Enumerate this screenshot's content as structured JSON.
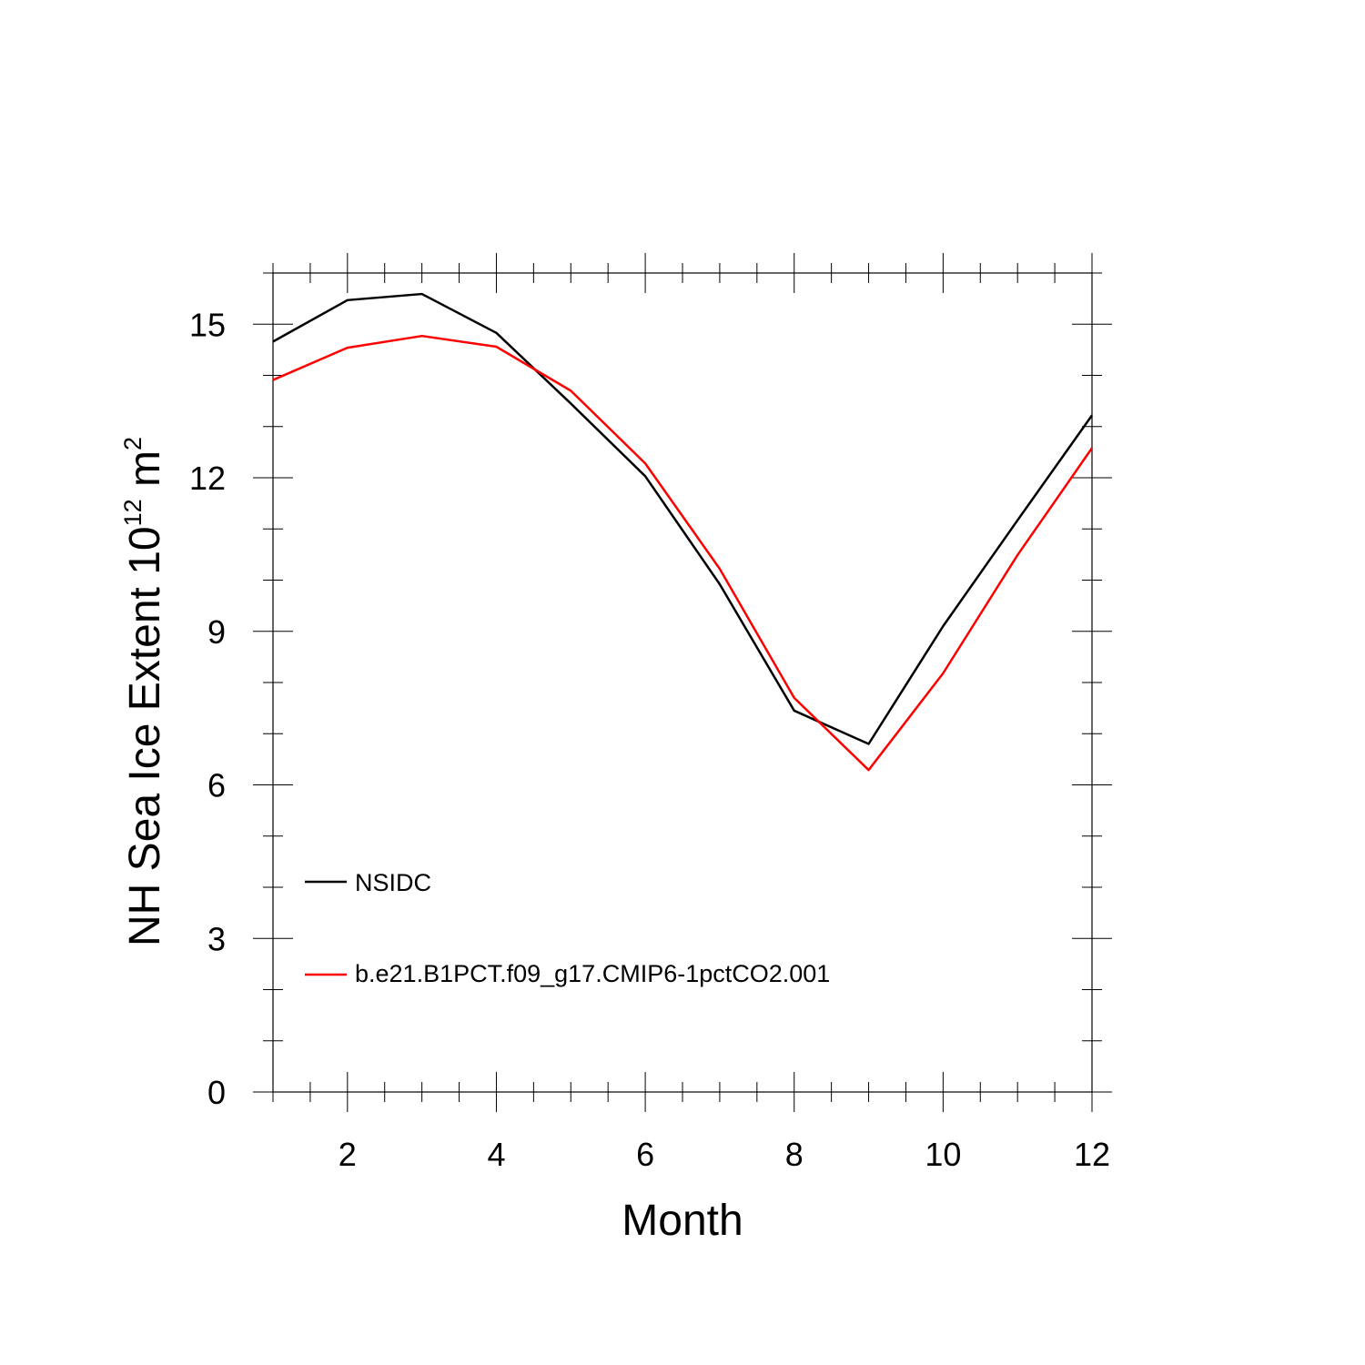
{
  "chart_data": {
    "type": "line",
    "title": "",
    "xlabel": "Month",
    "ylabel": {
      "main": "NH Sea Ice Extent 10",
      "sup1": "12",
      "unit": " m",
      "sup2": "2"
    },
    "xlim": [
      1,
      12
    ],
    "ylim": [
      0,
      16
    ],
    "xticks": [
      2,
      4,
      6,
      8,
      10,
      12
    ],
    "xtick_labels": [
      "2",
      "4",
      "6",
      "8",
      "10",
      "12"
    ],
    "yticks": [
      0,
      3,
      6,
      9,
      12,
      15
    ],
    "ytick_labels": [
      "0",
      "3",
      "6",
      "9",
      "12",
      "15"
    ],
    "grid": false,
    "legend": "lower-left",
    "x": [
      1,
      2,
      3,
      4,
      5,
      6,
      7,
      8,
      9,
      10,
      11,
      12
    ],
    "series": [
      {
        "name": "NSIDC",
        "color": "#000000",
        "values": [
          14.66,
          15.47,
          15.59,
          14.83,
          13.45,
          12.03,
          9.92,
          7.45,
          6.8,
          9.1,
          11.17,
          13.22
        ]
      },
      {
        "name": "b.e21.B1PCT.f09_g17.CMIP6-1pctCO2.001",
        "color": "#ff0000",
        "values": [
          13.91,
          14.54,
          14.77,
          14.56,
          13.7,
          12.28,
          10.22,
          7.7,
          6.29,
          8.18,
          10.49,
          12.58
        ]
      }
    ]
  }
}
